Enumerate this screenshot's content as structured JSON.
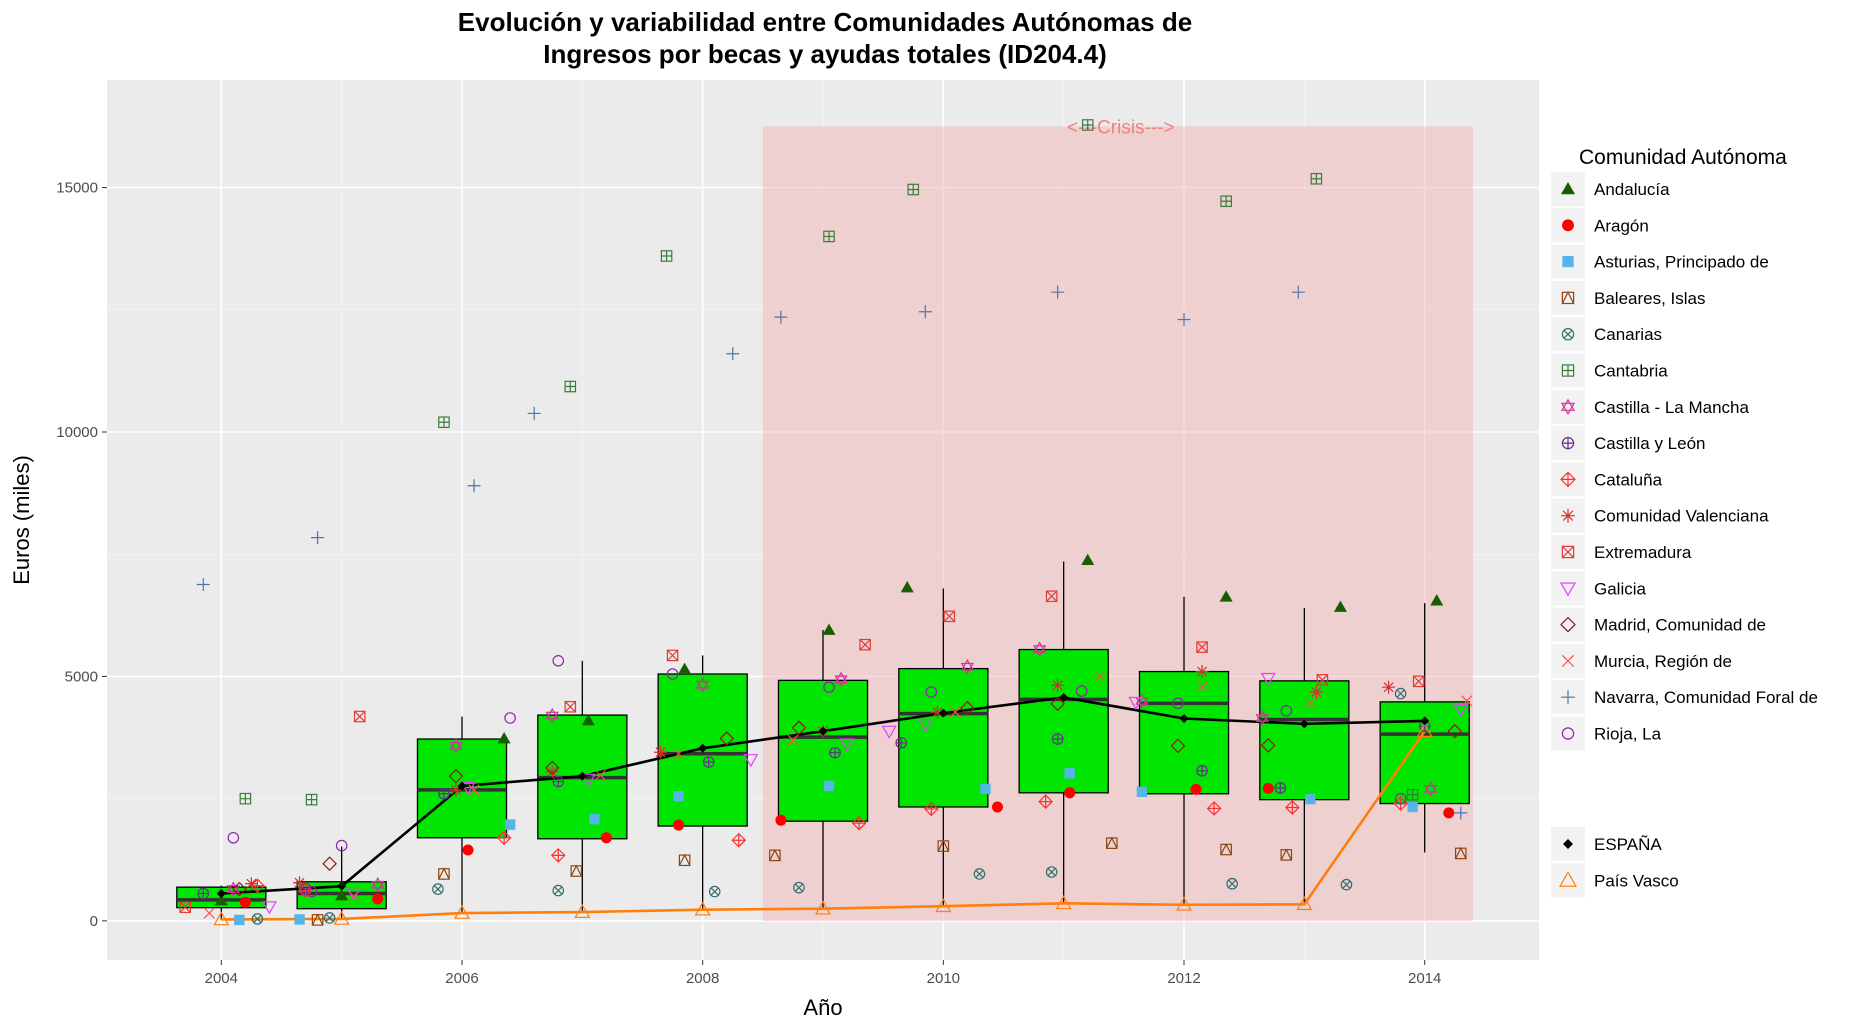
{
  "chart_data": {
    "type": "boxplot",
    "title_line1": "Evolución y variabilidad entre Comunidades Autónomas de",
    "title_line2": "Ingresos por becas y ayudas totales (ID204.4)",
    "xlabel": "Año",
    "ylabel": "Euros (miles)",
    "xlim": [
      2003.05,
      2014.95
    ],
    "ylim": [
      -800,
      17200
    ],
    "x_ticks": [
      2004,
      2006,
      2008,
      2010,
      2012,
      2014
    ],
    "y_ticks": [
      0,
      5000,
      10000,
      15000
    ],
    "crisis": {
      "label": "<---Crisis--->",
      "x_start": 2008.5,
      "x_end": 2014.4,
      "y_top": 16250,
      "color": "#f4b6b6"
    },
    "boxes": [
      {
        "year": 2004,
        "q1": 270,
        "median": 430,
        "q3": 690,
        "whisker_low": 30,
        "whisker_high": 720
      },
      {
        "year": 2005,
        "q1": 250,
        "median": 560,
        "q3": 800,
        "whisker_low": 30,
        "whisker_high": 1520
      },
      {
        "year": 2006,
        "q1": 1700,
        "median": 2680,
        "q3": 3720,
        "whisker_low": 170,
        "whisker_high": 4180
      },
      {
        "year": 2007,
        "q1": 1680,
        "median": 2930,
        "q3": 4210,
        "whisker_low": 170,
        "whisker_high": 5320
      },
      {
        "year": 2008,
        "q1": 1940,
        "median": 3420,
        "q3": 5050,
        "whisker_low": 210,
        "whisker_high": 5430
      },
      {
        "year": 2009,
        "q1": 2040,
        "median": 3760,
        "q3": 4920,
        "whisker_low": 230,
        "whisker_high": 5950
      },
      {
        "year": 2010,
        "q1": 2330,
        "median": 4240,
        "q3": 5160,
        "whisker_low": 280,
        "whisker_high": 6800
      },
      {
        "year": 2011,
        "q1": 2620,
        "median": 4530,
        "q3": 5550,
        "whisker_low": 340,
        "whisker_high": 7350
      },
      {
        "year": 2012,
        "q1": 2600,
        "median": 4450,
        "q3": 5100,
        "whisker_low": 320,
        "whisker_high": 6630
      },
      {
        "year": 2013,
        "q1": 2480,
        "median": 4120,
        "q3": 4910,
        "whisker_low": 330,
        "whisker_high": 6400
      },
      {
        "year": 2014,
        "q1": 2400,
        "median": 3820,
        "q3": 4480,
        "whisker_low": 1400,
        "whisker_high": 6500
      }
    ],
    "box_fill": "#00e600",
    "legend_title": "Comunidad Autónoma",
    "series": [
      {
        "name": "Andalucía",
        "shape": "triangle-filled",
        "color": "#1a5c00",
        "points": [
          [
            2004.0,
            420
          ],
          [
            2005.0,
            520
          ],
          [
            2006.35,
            3730
          ],
          [
            2007.05,
            4100
          ],
          [
            2007.85,
            5150
          ],
          [
            2009.05,
            5950
          ],
          [
            2009.7,
            6820
          ],
          [
            2011.2,
            7380
          ],
          [
            2012.35,
            6630
          ],
          [
            2013.3,
            6420
          ],
          [
            2014.1,
            6550
          ]
        ]
      },
      {
        "name": "Aragón",
        "shape": "circle-filled",
        "color": "#ff0000",
        "points": [
          [
            2004.2,
            380
          ],
          [
            2005.3,
            450
          ],
          [
            2006.05,
            1450
          ],
          [
            2007.2,
            1700
          ],
          [
            2007.8,
            1960
          ],
          [
            2008.65,
            2060
          ],
          [
            2010.45,
            2330
          ],
          [
            2011.05,
            2620
          ],
          [
            2012.1,
            2690
          ],
          [
            2012.7,
            2710
          ],
          [
            2014.2,
            2210
          ]
        ]
      },
      {
        "name": "Asturias, Principado de",
        "shape": "square-filled",
        "color": "#56b4e9",
        "points": [
          [
            2004.15,
            20
          ],
          [
            2004.65,
            30
          ],
          [
            2006.4,
            1970
          ],
          [
            2007.1,
            2080
          ],
          [
            2007.8,
            2550
          ],
          [
            2009.05,
            2760
          ],
          [
            2010.35,
            2700
          ],
          [
            2011.05,
            3020
          ],
          [
            2011.65,
            2640
          ],
          [
            2013.05,
            2490
          ],
          [
            2013.9,
            2330
          ]
        ]
      },
      {
        "name": "Baleares, Islas",
        "shape": "square-boxed-triangle",
        "color": "#8b4513",
        "points": [
          [
            2004.8,
            20
          ],
          [
            2005.85,
            960
          ],
          [
            2006.95,
            1020
          ],
          [
            2007.85,
            1240
          ],
          [
            2008.6,
            1340
          ],
          [
            2010.0,
            1530
          ],
          [
            2011.4,
            1590
          ],
          [
            2012.35,
            1460
          ],
          [
            2012.85,
            1350
          ],
          [
            2014.3,
            1380
          ]
        ]
      },
      {
        "name": "Canarias",
        "shape": "circle-x",
        "color": "#2f6f6f",
        "points": [
          [
            2004.3,
            40
          ],
          [
            2004.9,
            60
          ],
          [
            2005.8,
            650
          ],
          [
            2006.8,
            620
          ],
          [
            2008.1,
            600
          ],
          [
            2008.8,
            680
          ],
          [
            2010.3,
            960
          ],
          [
            2010.9,
            1000
          ],
          [
            2012.4,
            760
          ],
          [
            2013.35,
            740
          ],
          [
            2013.8,
            4650
          ]
        ]
      },
      {
        "name": "Cantabria",
        "shape": "square-plus",
        "color": "#3a7d3a",
        "points": [
          [
            2004.2,
            2500
          ],
          [
            2004.75,
            2480
          ],
          [
            2005.85,
            10200
          ],
          [
            2006.9,
            10930
          ],
          [
            2007.7,
            13600
          ],
          [
            2009.05,
            14000
          ],
          [
            2009.75,
            14960
          ],
          [
            2011.2,
            16280
          ],
          [
            2012.35,
            14720
          ],
          [
            2013.1,
            15180
          ],
          [
            2013.9,
            2580
          ]
        ]
      },
      {
        "name": "Castilla - La Mancha",
        "shape": "star-of-david",
        "color": "#d4329b",
        "points": [
          [
            2004.1,
            650
          ],
          [
            2005.3,
            740
          ],
          [
            2005.95,
            3580
          ],
          [
            2006.75,
            4200
          ],
          [
            2008.0,
            4830
          ],
          [
            2009.15,
            4940
          ],
          [
            2010.2,
            5200
          ],
          [
            2010.8,
            5560
          ],
          [
            2011.65,
            4500
          ],
          [
            2012.65,
            4150
          ],
          [
            2014.05,
            2700
          ]
        ]
      },
      {
        "name": "Castilla y León",
        "shape": "circle-plus",
        "color": "#6a2c91",
        "points": [
          [
            2003.85,
            560
          ],
          [
            2004.7,
            660
          ],
          [
            2005.85,
            2600
          ],
          [
            2006.8,
            2850
          ],
          [
            2008.05,
            3250
          ],
          [
            2009.1,
            3440
          ],
          [
            2009.65,
            3640
          ],
          [
            2010.95,
            3720
          ],
          [
            2012.15,
            3070
          ],
          [
            2012.8,
            2720
          ],
          [
            2014.0,
            3980
          ]
        ]
      },
      {
        "name": "Cataluña",
        "shape": "diamond-plus",
        "color": "#ff3030",
        "points": [
          [
            2004.3,
            720
          ],
          [
            2004.7,
            620
          ],
          [
            2006.35,
            1700
          ],
          [
            2006.8,
            1340
          ],
          [
            2008.3,
            1650
          ],
          [
            2009.3,
            2000
          ],
          [
            2009.9,
            2290
          ],
          [
            2010.85,
            2440
          ],
          [
            2012.25,
            2300
          ],
          [
            2012.9,
            2320
          ],
          [
            2013.8,
            2400
          ]
        ]
      },
      {
        "name": "Comunidad Valenciana",
        "shape": "asterisk",
        "color": "#d32f2f",
        "points": [
          [
            2004.25,
            760
          ],
          [
            2004.65,
            780
          ],
          [
            2005.95,
            2680
          ],
          [
            2006.75,
            3050
          ],
          [
            2007.65,
            3450
          ],
          [
            2009.0,
            3880
          ],
          [
            2009.95,
            4270
          ],
          [
            2010.95,
            4820
          ],
          [
            2012.15,
            5100
          ],
          [
            2013.1,
            4680
          ],
          [
            2013.7,
            4780
          ]
        ]
      },
      {
        "name": "Extremadura",
        "shape": "square-x",
        "color": "#e53935",
        "points": [
          [
            2003.7,
            280
          ],
          [
            2005.15,
            4180
          ],
          [
            2006.9,
            4380
          ],
          [
            2007.75,
            5430
          ],
          [
            2009.35,
            5650
          ],
          [
            2010.05,
            6230
          ],
          [
            2010.9,
            6640
          ],
          [
            2012.15,
            5600
          ],
          [
            2013.15,
            4930
          ],
          [
            2013.95,
            4900
          ]
        ]
      },
      {
        "name": "Galicia",
        "shape": "triangle-down",
        "color": "#e040fb",
        "points": [
          [
            2004.4,
            290
          ],
          [
            2005.1,
            580
          ],
          [
            2006.05,
            2730
          ],
          [
            2007.05,
            2900
          ],
          [
            2008.4,
            3300
          ],
          [
            2009.2,
            3620
          ],
          [
            2009.55,
            3880
          ],
          [
            2009.85,
            4020
          ],
          [
            2011.6,
            4470
          ],
          [
            2012.7,
            4960
          ],
          [
            2014.3,
            4330
          ]
        ]
      },
      {
        "name": "Madrid, Comunidad de",
        "shape": "diamond",
        "color": "#8b1a1a",
        "points": [
          [
            2004.15,
            650
          ],
          [
            2004.9,
            1170
          ],
          [
            2005.95,
            2960
          ],
          [
            2006.75,
            3130
          ],
          [
            2008.2,
            3730
          ],
          [
            2008.8,
            3950
          ],
          [
            2010.2,
            4350
          ],
          [
            2010.95,
            4440
          ],
          [
            2011.95,
            3580
          ],
          [
            2012.7,
            3590
          ],
          [
            2014.25,
            3880
          ]
        ]
      },
      {
        "name": "Murcia, Región de",
        "shape": "cross-x",
        "color": "#ff4d4d",
        "points": [
          [
            2003.9,
            160
          ],
          [
            2005.1,
            500
          ],
          [
            2006.1,
            2680
          ],
          [
            2007.15,
            2980
          ],
          [
            2007.8,
            3420
          ],
          [
            2008.75,
            3700
          ],
          [
            2010.1,
            4270
          ],
          [
            2011.3,
            5000
          ],
          [
            2012.15,
            4790
          ],
          [
            2013.05,
            4450
          ],
          [
            2014.35,
            4500
          ]
        ]
      },
      {
        "name": "Navarra, Comunidad Foral de",
        "shape": "plus",
        "color": "#4a76b0",
        "points": [
          [
            2003.85,
            6880
          ],
          [
            2004.8,
            7840
          ],
          [
            2006.1,
            8900
          ],
          [
            2006.6,
            10380
          ],
          [
            2008.25,
            11600
          ],
          [
            2008.65,
            12350
          ],
          [
            2009.85,
            12460
          ],
          [
            2010.95,
            12860
          ],
          [
            2012.0,
            12300
          ],
          [
            2012.95,
            12860
          ],
          [
            2014.3,
            2210
          ]
        ]
      },
      {
        "name": "Rioja, La",
        "shape": "circle",
        "color": "#8e24aa",
        "points": [
          [
            2004.1,
            1700
          ],
          [
            2004.75,
            600
          ],
          [
            2005.0,
            1540
          ],
          [
            2006.4,
            4150
          ],
          [
            2006.8,
            5320
          ],
          [
            2007.75,
            5050
          ],
          [
            2009.05,
            4780
          ],
          [
            2009.9,
            4680
          ],
          [
            2011.15,
            4700
          ],
          [
            2011.95,
            4450
          ],
          [
            2012.85,
            4300
          ],
          [
            2013.8,
            2500
          ]
        ]
      }
    ],
    "espana": {
      "name": "ESPAÑA",
      "color": "#000000",
      "x": [
        2004,
        2005,
        2006,
        2007,
        2008,
        2009,
        2010,
        2011,
        2012,
        2013,
        2014
      ],
      "y": [
        560,
        710,
        2760,
        2960,
        3530,
        3880,
        4250,
        4570,
        4140,
        4030,
        4090
      ]
    },
    "pais_vasco": {
      "name": "País Vasco",
      "color": "#ff7f0e",
      "x": [
        2004,
        2005,
        2006,
        2007,
        2008,
        2009,
        2010,
        2011,
        2012,
        2013,
        2014
      ],
      "y": [
        30,
        40,
        160,
        180,
        230,
        250,
        300,
        360,
        330,
        340,
        3880
      ]
    }
  }
}
